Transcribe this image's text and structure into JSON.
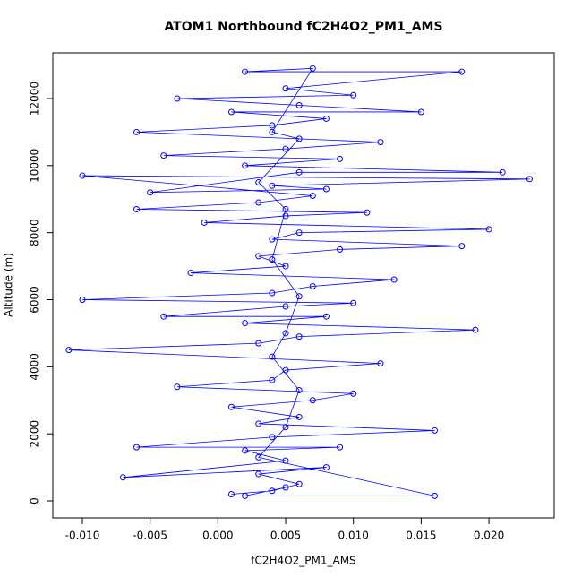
{
  "chart_data": {
    "type": "line",
    "title": "ATOM1 Northbound fC2H4O2_PM1_AMS",
    "xlabel": "fC2H4O2_PM1_AMS",
    "ylabel": "Altitude (m)",
    "color": "#0000ff",
    "markers": true,
    "x": [
      0.001,
      0.004,
      0.006,
      0.003,
      0.008,
      -0.007,
      0.005,
      0.002,
      0.009,
      -0.006,
      0.004,
      0.016,
      0.003,
      0.006,
      0.001,
      0.007,
      0.01,
      -0.003,
      0.004,
      0.005,
      0.012,
      -0.011,
      0.003,
      0.006,
      0.019,
      0.002,
      0.008,
      -0.004,
      0.005,
      0.01,
      -0.01,
      0.004,
      0.007,
      0.013,
      -0.002,
      0.005,
      0.003,
      0.009,
      0.018,
      0.004,
      0.006,
      0.02,
      -0.001,
      0.005,
      0.011,
      -0.006,
      0.003,
      0.007,
      -0.01,
      0.023,
      0.004,
      0.008,
      -0.005,
      0.006,
      0.021,
      0.002,
      0.009,
      -0.004,
      0.005,
      0.012,
      -0.006,
      0.004,
      0.008,
      0.001,
      0.015,
      0.006,
      -0.003,
      0.01,
      0.005,
      0.018,
      0.002,
      0.007,
      0.004,
      0.006,
      0.003,
      0.005,
      0.004,
      0.006,
      0.005,
      0.004,
      0.006,
      0.005,
      0.003,
      0.016,
      0.002,
      0.005
    ],
    "values": [
      200,
      300,
      500,
      800,
      1000,
      700,
      1200,
      1500,
      1600,
      1600,
      1900,
      2100,
      2300,
      2500,
      2800,
      3000,
      3200,
      3400,
      3600,
      3900,
      4100,
      4500,
      4700,
      4900,
      5100,
      5300,
      5500,
      5500,
      5800,
      5900,
      6000,
      6200,
      6400,
      6600,
      6800,
      7000,
      7300,
      7500,
      7600,
      7800,
      8000,
      8100,
      8300,
      8500,
      8600,
      8700,
      8900,
      9100,
      9700,
      9600,
      9400,
      9300,
      9200,
      9800,
      9800,
      10000,
      10200,
      10300,
      10500,
      10700,
      11000,
      11200,
      11400,
      11600,
      11600,
      11800,
      12000,
      12100,
      12300,
      12800,
      12800,
      12900,
      11000,
      10800,
      9500,
      8700,
      7200,
      6100,
      5000,
      4300,
      3300,
      2200,
      1300,
      150,
      150,
      400
    ],
    "xlim": [
      -0.01218,
      0.02482
    ],
    "ylim": [
      -508,
      13363
    ],
    "xticks": [
      {
        "value": -0.01,
        "label": "-0.010"
      },
      {
        "value": -0.005,
        "label": "-0.005"
      },
      {
        "value": 0,
        "label": "0.000"
      },
      {
        "value": 0.005,
        "label": "0.005"
      },
      {
        "value": 0.01,
        "label": "0.010"
      },
      {
        "value": 0.015,
        "label": "0.015"
      },
      {
        "value": 0.02,
        "label": "0.020"
      }
    ],
    "yticks": [
      0,
      2000,
      4000,
      6000,
      8000,
      10000,
      12000
    ]
  }
}
